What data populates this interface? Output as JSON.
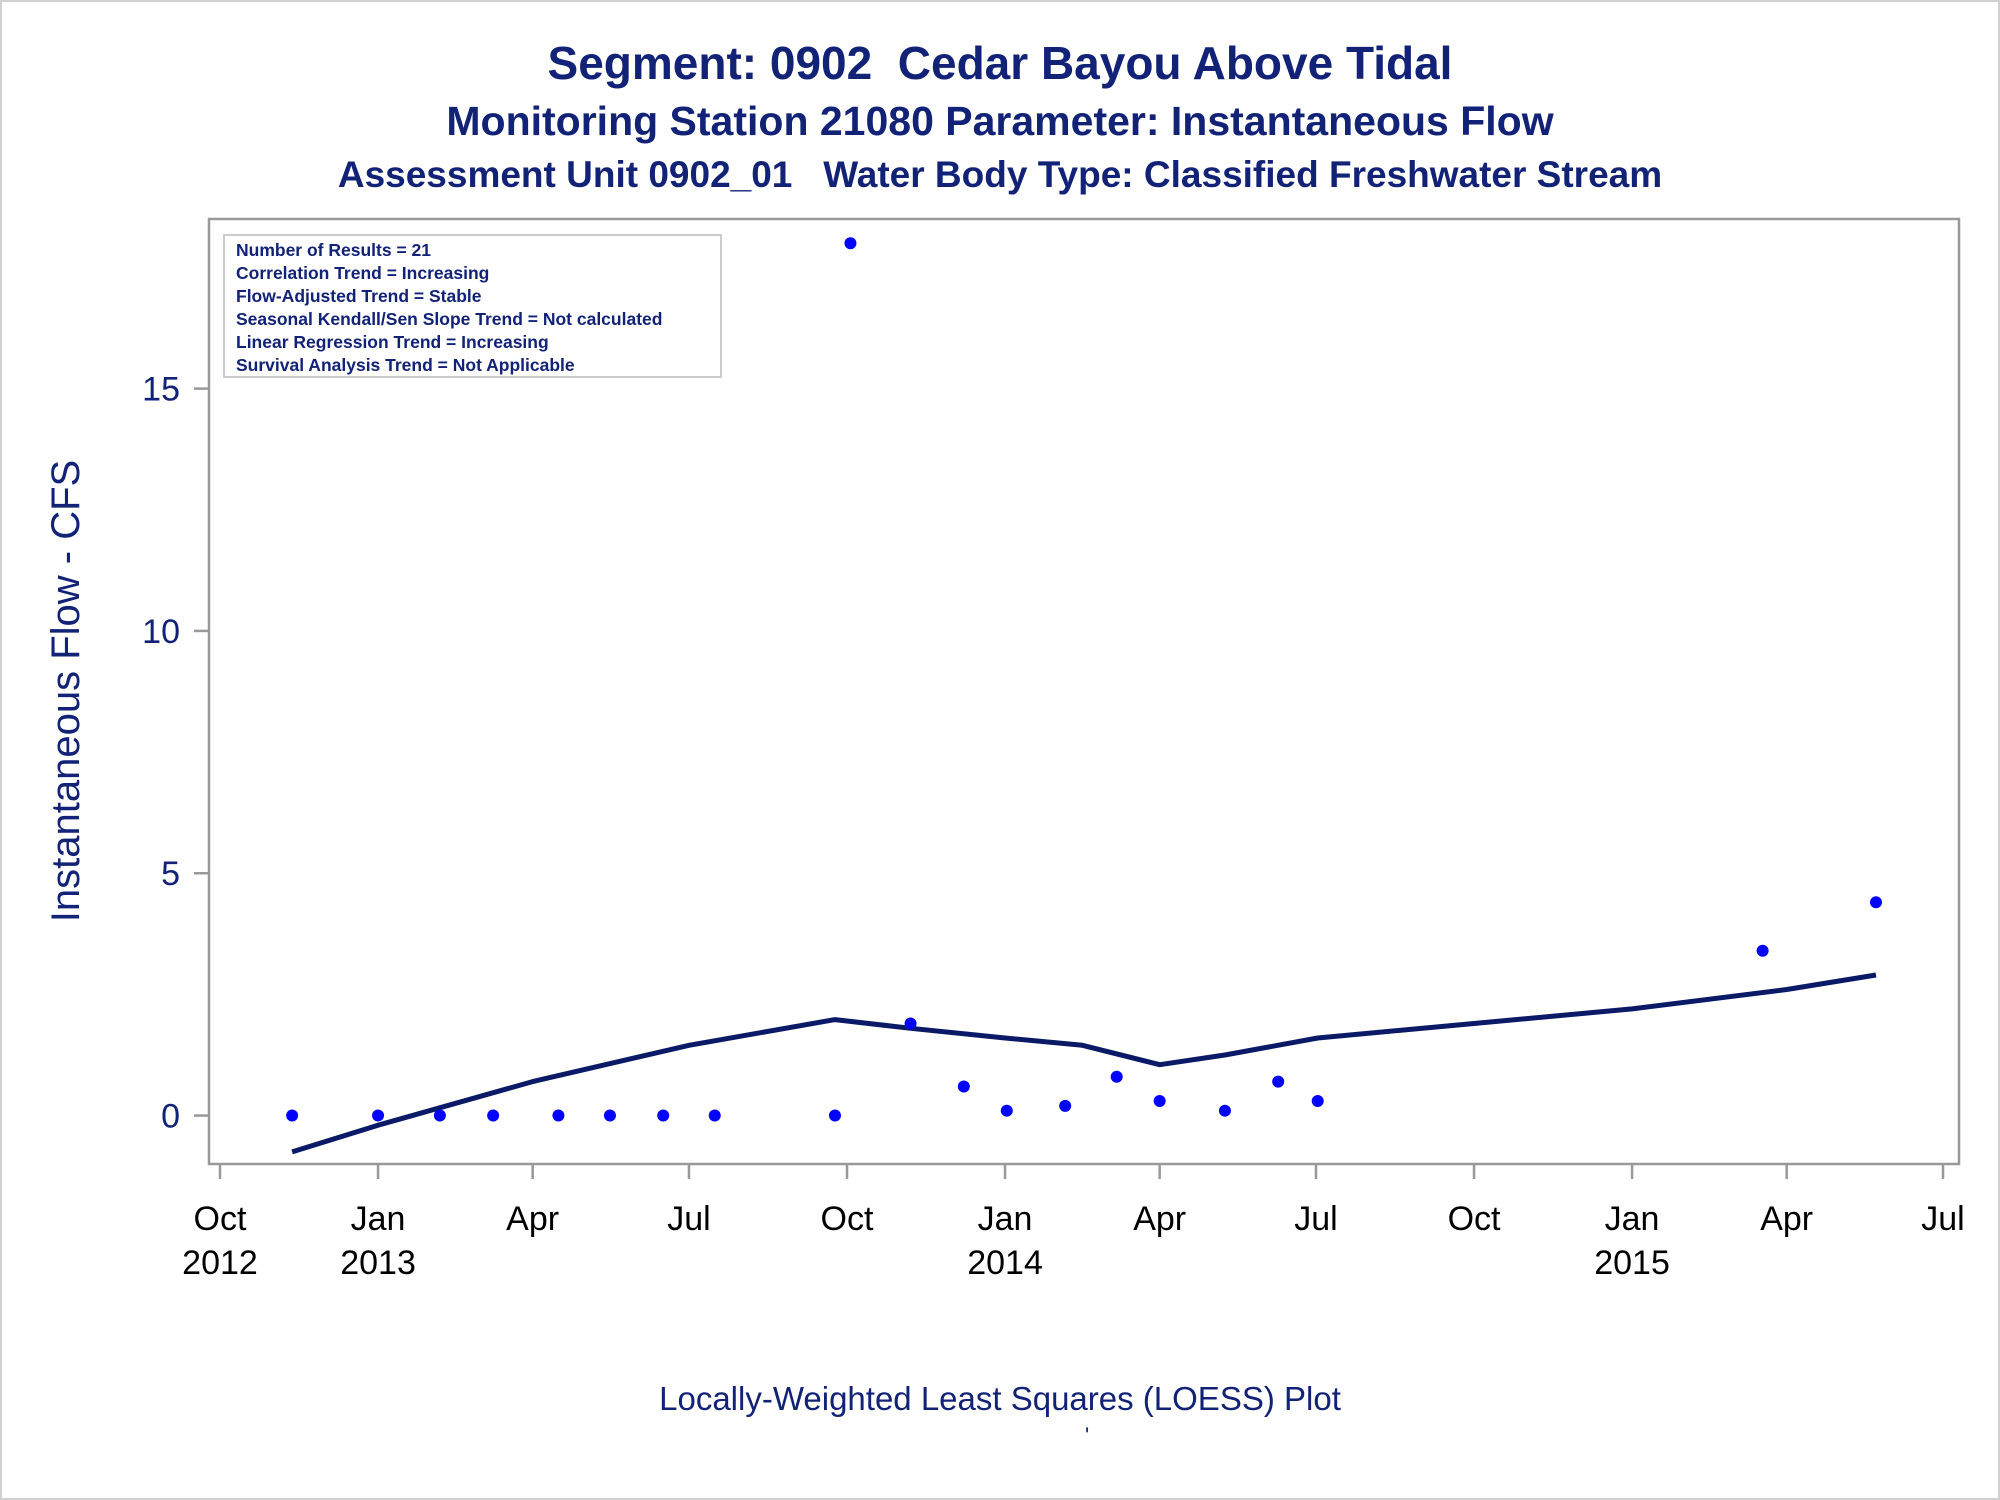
{
  "titles": {
    "line1": "Segment: 0902  Cedar Bayou Above Tidal",
    "line2": "Monitoring Station 21080 Parameter: Instantaneous Flow",
    "line3": "Assessment Unit 0902_01   Water Body Type: Classified Freshwater Stream"
  },
  "footnote": {
    "text": "Locally-Weighted Least Squares (LOESS) Plot",
    "mark": "'"
  },
  "stats_box": [
    "Number of Results = 21",
    "Correlation Trend = Increasing",
    "Flow-Adjusted Trend = Stable",
    "Seasonal Kendall/Sen Slope Trend = Not calculated",
    "Linear Regression Trend = Increasing",
    "Survival Analysis Trend = Not Applicable"
  ],
  "colors": {
    "text": "#112277",
    "points": "#0000ff",
    "loess_line": "#0a1a66",
    "frame": "#999999"
  },
  "chart_data": {
    "type": "scatter",
    "ylabel": "Instantaneous Flow - CFS",
    "xlim": [
      "2012-10-01",
      "2015-07-01"
    ],
    "ylim": [
      -1,
      18.5
    ],
    "y_ticks": [
      0,
      5,
      10,
      15
    ],
    "x_ticks": [
      {
        "date": "2012-10-01",
        "label": [
          "Oct",
          "2012"
        ]
      },
      {
        "date": "2013-01-01",
        "label": [
          "Jan",
          "2013"
        ]
      },
      {
        "date": "2013-04-01",
        "label": [
          "Apr"
        ]
      },
      {
        "date": "2013-07-01",
        "label": [
          "Jul"
        ]
      },
      {
        "date": "2013-10-01",
        "label": [
          "Oct"
        ]
      },
      {
        "date": "2014-01-01",
        "label": [
          "Jan",
          "2014"
        ]
      },
      {
        "date": "2014-04-01",
        "label": [
          "Apr"
        ]
      },
      {
        "date": "2014-07-01",
        "label": [
          "Jul"
        ]
      },
      {
        "date": "2014-10-01",
        "label": [
          "Oct"
        ]
      },
      {
        "date": "2015-01-01",
        "label": [
          "Jan",
          "2015"
        ]
      },
      {
        "date": "2015-04-01",
        "label": [
          "Apr"
        ]
      },
      {
        "date": "2015-07-01",
        "label": [
          "Jul"
        ]
      }
    ],
    "points": [
      {
        "date": "2012-11-12",
        "value": 0.0
      },
      {
        "date": "2013-01-01",
        "value": 0.0
      },
      {
        "date": "2013-02-06",
        "value": 0.0
      },
      {
        "date": "2013-03-09",
        "value": 0.0
      },
      {
        "date": "2013-04-16",
        "value": 0.0
      },
      {
        "date": "2013-05-16",
        "value": 0.0
      },
      {
        "date": "2013-06-16",
        "value": 0.0
      },
      {
        "date": "2013-07-16",
        "value": 0.0
      },
      {
        "date": "2013-09-24",
        "value": 0.0
      },
      {
        "date": "2013-10-03",
        "value": 18.0
      },
      {
        "date": "2013-11-07",
        "value": 1.9
      },
      {
        "date": "2013-12-08",
        "value": 0.6
      },
      {
        "date": "2014-01-02",
        "value": 0.1
      },
      {
        "date": "2014-02-05",
        "value": 0.2
      },
      {
        "date": "2014-03-07",
        "value": 0.8
      },
      {
        "date": "2014-04-01",
        "value": 0.3
      },
      {
        "date": "2014-05-09",
        "value": 0.1
      },
      {
        "date": "2014-06-09",
        "value": 0.7
      },
      {
        "date": "2014-07-02",
        "value": 0.3
      },
      {
        "date": "2015-03-18",
        "value": 3.4
      },
      {
        "date": "2015-05-23",
        "value": 4.4
      }
    ],
    "loess": [
      {
        "date": "2012-11-12",
        "value": -0.75
      },
      {
        "date": "2013-01-01",
        "value": -0.2
      },
      {
        "date": "2013-04-01",
        "value": 0.7
      },
      {
        "date": "2013-07-01",
        "value": 1.45
      },
      {
        "date": "2013-09-24",
        "value": 1.98
      },
      {
        "date": "2013-11-07",
        "value": 1.8
      },
      {
        "date": "2014-01-01",
        "value": 1.6
      },
      {
        "date": "2014-02-15",
        "value": 1.45
      },
      {
        "date": "2014-04-01",
        "value": 1.05
      },
      {
        "date": "2014-05-09",
        "value": 1.25
      },
      {
        "date": "2014-07-02",
        "value": 1.6
      },
      {
        "date": "2014-10-01",
        "value": 1.9
      },
      {
        "date": "2015-01-01",
        "value": 2.2
      },
      {
        "date": "2015-04-01",
        "value": 2.6
      },
      {
        "date": "2015-05-23",
        "value": 2.9
      }
    ]
  }
}
